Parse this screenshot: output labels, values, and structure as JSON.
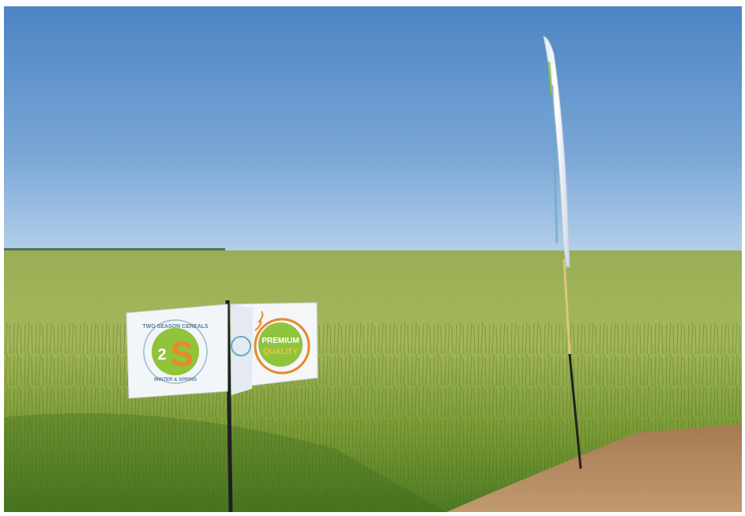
{
  "image": {
    "kind": "photograph",
    "colors": {
      "sky_top": "#4f86c4",
      "sky_horizon": "#a9c8e6",
      "field_far": "#8fa84c",
      "field_near": "#5f8a2a",
      "soil": "#b0845c",
      "flag_white": "#f4f6f8",
      "badge_green": "#8fc43c",
      "badge_orange": "#e8892a"
    },
    "icons": [
      "2s-logo-icon",
      "premium-quality-badge-icon",
      "wheat-ear-icon"
    ]
  },
  "flag_left": {
    "logo_top": "TWO SEASON CEREALS",
    "logo_mark_digit": "2",
    "logo_mark_letter": "S",
    "logo_bottom": "WINTER & SPRING"
  },
  "flag_right": {
    "badge_line1": "PREMIUM",
    "badge_line2": "QUALITY"
  }
}
